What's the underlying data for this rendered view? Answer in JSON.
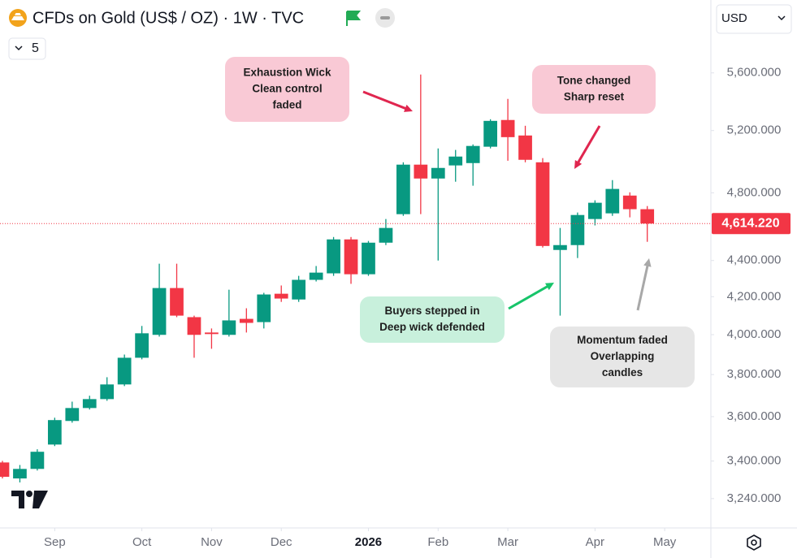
{
  "chart_data": {
    "type": "candlestick",
    "title": "CFDs on Gold (US$ / OZ) · 1W · TVC",
    "currency": "USD",
    "interval_badge": "5",
    "log_scale": true,
    "up_color": "#089981",
    "down_color": "#f23645",
    "categories": [
      null,
      null,
      null,
      null,
      null,
      null,
      null,
      null,
      null,
      null,
      null,
      null,
      null,
      null,
      null,
      null,
      null,
      null,
      null,
      null,
      null,
      null,
      null,
      null,
      null,
      null,
      null,
      null,
      null,
      null,
      null,
      null,
      null,
      null,
      null,
      null,
      null,
      null
    ],
    "open": [
      3394,
      3325,
      3366,
      3473,
      3580,
      3640,
      3682,
      3752,
      3883,
      3999,
      4247,
      4091,
      4011,
      3999,
      4082,
      4065,
      4216,
      4185,
      4292,
      4328,
      4521,
      4323,
      4502,
      4670,
      4977,
      4889,
      4972,
      4987,
      5093,
      5271,
      5167,
      4992,
      4460,
      4488,
      4641,
      4675,
      4783,
      4700
    ],
    "high": [
      3401,
      3383,
      3452,
      3595,
      3670,
      3698,
      3787,
      3899,
      4045,
      4382,
      4382,
      4099,
      4032,
      4238,
      4138,
      4221,
      4261,
      4314,
      4369,
      4535,
      4535,
      4512,
      4641,
      4992,
      5588,
      5082,
      5072,
      5108,
      5276,
      5416,
      5232,
      5019,
      4588,
      4680,
      4754,
      4879,
      4803,
      4719
    ],
    "low": [
      3325,
      3308,
      3359,
      3466,
      3572,
      3633,
      3674,
      3744,
      3875,
      3990,
      4091,
      3883,
      3928,
      3990,
      4011,
      4032,
      4172,
      4172,
      4283,
      4314,
      4270,
      4314,
      4488,
      4660,
      4670,
      4400,
      4869,
      4844,
      5082,
      5002,
      4992,
      4474,
      4099,
      4414,
      4603,
      4660,
      4651,
      4507
    ],
    "close": [
      3332,
      3366,
      3441,
      3584,
      3640,
      3682,
      3752,
      3883,
      4007,
      4247,
      4099,
      3999,
      4003,
      4074,
      4061,
      4212,
      4190,
      4292,
      4332,
      4521,
      4323,
      4502,
      4588,
      4977,
      4889,
      4956,
      5029,
      5098,
      5265,
      5156,
      5008,
      4483,
      4488,
      4665,
      4739,
      4824,
      4700,
      4614.22
    ],
    "last_price": {
      "value": 4614.22,
      "label": "4,614.220"
    },
    "xlim": [
      -0.14,
      40.65
    ],
    "xticks": [
      {
        "value": 3,
        "label": "Sep"
      },
      {
        "value": 8,
        "label": "Oct"
      },
      {
        "value": 12,
        "label": "Nov"
      },
      {
        "value": 16,
        "label": "Dec"
      },
      {
        "value": 21,
        "label": "2026"
      },
      {
        "value": 25,
        "label": "Feb"
      },
      {
        "value": 29,
        "label": "Mar"
      },
      {
        "value": 34,
        "label": "Apr"
      },
      {
        "value": 38,
        "label": "May"
      }
    ],
    "ylim": [
      3120,
      6150
    ],
    "yticks": [
      {
        "value": 3240,
        "label": "3,240.000"
      },
      {
        "value": 3400,
        "label": "3,400.000"
      },
      {
        "value": 3600,
        "label": "3,600.000"
      },
      {
        "value": 3800,
        "label": "3,800.000"
      },
      {
        "value": 4000,
        "label": "4,000.000"
      },
      {
        "value": 4200,
        "label": "4,200.000"
      },
      {
        "value": 4400,
        "label": "4,400.000"
      },
      {
        "value": 4800,
        "label": "4,800.000"
      },
      {
        "value": 5200,
        "label": "5,200.000"
      },
      {
        "value": 5600,
        "label": "5,600.000"
      }
    ],
    "annotations": [
      {
        "lines": [
          "Exhaustion Wick",
          "Clean control",
          "faded"
        ],
        "color": "#f9c9d5",
        "arrow_color": "#e0264f"
      },
      {
        "lines": [
          "Tone changed",
          "Sharp reset"
        ],
        "color": "#f9c9d5",
        "arrow_color": "#e0264f"
      },
      {
        "lines": [
          "Buyers stepped in",
          "Deep wick defended"
        ],
        "color": "#c8f0dc",
        "arrow_color": "#17c46a"
      },
      {
        "lines": [
          "Momentum faded",
          "Overlapping",
          "candles"
        ],
        "color": "#e6e6e6",
        "arrow_color": "#a8a8a8"
      }
    ]
  }
}
